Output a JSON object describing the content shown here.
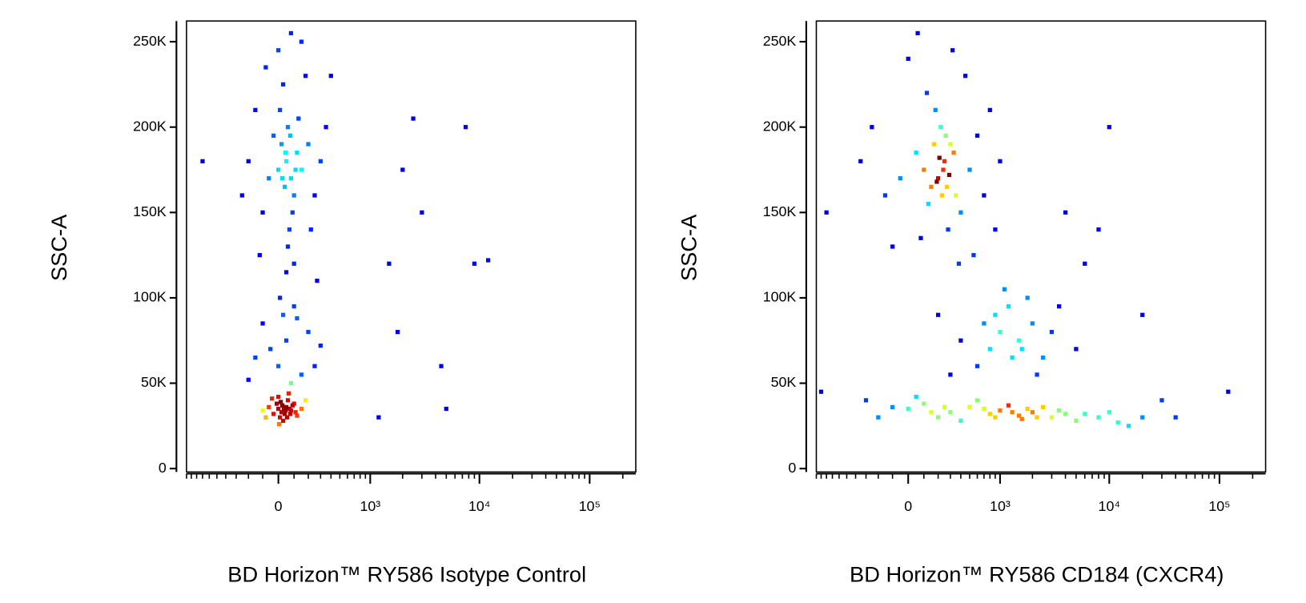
{
  "chart_data": [
    {
      "type": "scatter",
      "x_label": "BD Horizon™ RY586 Isotype Control",
      "y_label": "SSC-A",
      "xscale": "asinh",
      "colormap": "jet",
      "xlim": [
        -1000,
        262144
      ],
      "ylim": [
        -2000,
        262144
      ],
      "xticks": [
        0,
        {
          "value": 1000,
          "label": "10³"
        },
        {
          "value": 10000,
          "label": "10⁴"
        },
        {
          "value": 100000,
          "label": "10⁵"
        }
      ],
      "xminorticks": [
        -1000,
        -900,
        -800,
        -700,
        -600,
        -500,
        -400,
        -300,
        -200,
        -100,
        100,
        200,
        300,
        400,
        500,
        600,
        700,
        800,
        900,
        2000,
        3000,
        4000,
        5000,
        6000,
        7000,
        8000,
        9000,
        20000,
        30000,
        40000,
        50000,
        60000,
        70000,
        80000,
        90000,
        200000
      ],
      "yticks": [
        0,
        {
          "value": 50000,
          "label": "50K"
        },
        {
          "value": 100000,
          "label": "100K"
        },
        {
          "value": 150000,
          "label": "150K"
        },
        {
          "value": 200000,
          "label": "200K"
        },
        {
          "value": 250000,
          "label": "250K"
        }
      ],
      "x": [
        0,
        20,
        50,
        80,
        -30,
        100,
        10,
        60,
        -60,
        120,
        30,
        70,
        -10,
        40,
        90,
        -80,
        150,
        0,
        25,
        55,
        -40,
        110,
        5,
        65,
        -100,
        180,
        35,
        75,
        15,
        45,
        0,
        50,
        -100,
        150,
        100,
        -50,
        200,
        30,
        -150,
        250,
        80,
        10,
        -200,
        300,
        120,
        50,
        80,
        20,
        100,
        0,
        60,
        120,
        40,
        -30,
        150,
        90,
        10,
        70,
        130,
        -60,
        200,
        30,
        -100,
        250,
        60,
        180,
        -150,
        100,
        300,
        0,
        -200,
        350,
        50,
        150,
        -80,
        220,
        -120,
        400,
        80,
        -250,
        270,
        110,
        45,
        75,
        25,
        1500,
        2500,
        3000,
        1800,
        7500,
        9000,
        4500,
        1200,
        5000,
        12000,
        2000,
        -700
      ],
      "values": [
        35000,
        33000,
        36000,
        34000,
        32000,
        38000,
        30000,
        40000,
        36000,
        31000,
        28000,
        35000,
        38000,
        32000,
        37000,
        30000,
        35000,
        42000,
        37000,
        30000,
        41000,
        33000,
        26000,
        44000,
        34000,
        40000,
        35000,
        32000,
        39000,
        34000,
        60000,
        75000,
        85000,
        55000,
        95000,
        70000,
        80000,
        90000,
        65000,
        60000,
        50000,
        100000,
        52000,
        72000,
        88000,
        180000,
        170000,
        190000,
        160000,
        175000,
        200000,
        185000,
        165000,
        195000,
        175000,
        150000,
        210000,
        140000,
        205000,
        170000,
        190000,
        225000,
        150000,
        160000,
        130000,
        230000,
        210000,
        120000,
        180000,
        245000,
        180000,
        200000,
        115000,
        250000,
        235000,
        140000,
        125000,
        230000,
        255000,
        160000,
        110000,
        175000,
        185000,
        195000,
        170000,
        120000,
        205000,
        150000,
        80000,
        200000,
        120000,
        60000,
        30000,
        35000,
        122000,
        175000,
        180000
      ]
    },
    {
      "type": "scatter",
      "x_label": "BD Horizon™ RY586 CD184 (CXCR4)",
      "y_label": "SSC-A",
      "xscale": "asinh",
      "colormap": "jet",
      "xlim": [
        -1000,
        262144
      ],
      "ylim": [
        -2000,
        262144
      ],
      "xticks": [
        0,
        {
          "value": 1000,
          "label": "10³"
        },
        {
          "value": 10000,
          "label": "10⁴"
        },
        {
          "value": 100000,
          "label": "10⁵"
        }
      ],
      "xminorticks": [
        -1000,
        -900,
        -800,
        -700,
        -600,
        -500,
        -400,
        -300,
        -200,
        -100,
        100,
        200,
        300,
        400,
        500,
        600,
        700,
        800,
        900,
        2000,
        3000,
        4000,
        5000,
        6000,
        7000,
        8000,
        9000,
        20000,
        30000,
        40000,
        50000,
        60000,
        70000,
        80000,
        90000,
        200000
      ],
      "yticks": [
        0,
        {
          "value": 50000,
          "label": "50K"
        },
        {
          "value": 100000,
          "label": "100K"
        },
        {
          "value": 150000,
          "label": "150K"
        },
        {
          "value": 200000,
          "label": "200K"
        },
        {
          "value": 250000,
          "label": "250K"
        }
      ],
      "x": [
        0,
        100,
        300,
        500,
        800,
        1000,
        1500,
        2000,
        3000,
        200,
        -100,
        600,
        1200,
        2500,
        4000,
        5000,
        8000,
        12000,
        20000,
        50,
        400,
        700,
        1800,
        -300,
        150,
        900,
        1300,
        2200,
        3500,
        6000,
        250,
        1600,
        -200,
        10000,
        15000,
        1000,
        1500,
        2000,
        800,
        1200,
        2500,
        600,
        3000,
        1800,
        900,
        400,
        1300,
        2200,
        700,
        1600,
        5000,
        300,
        3500,
        1100,
        200,
        200,
        250,
        150,
        300,
        100,
        350,
        220,
        400,
        50,
        180,
        500,
        -50,
        280,
        120,
        600,
        -150,
        450,
        80,
        700,
        -250,
        320,
        0,
        800,
        -350,
        550,
        60,
        1000,
        -100,
        900,
        380,
        240,
        170,
        270,
        330,
        130,
        210,
        290,
        190,
        260,
        230,
        4000,
        8000,
        6000,
        10000,
        -800,
        20000,
        30000,
        120000,
        40000,
        -900
      ],
      "values": [
        35000,
        38000,
        33000,
        36000,
        32000,
        34000,
        31000,
        33000,
        30000,
        30000,
        36000,
        40000,
        37000,
        36000,
        32000,
        28000,
        30000,
        27000,
        30000,
        42000,
        28000,
        35000,
        35000,
        40000,
        33000,
        30000,
        33000,
        30000,
        34000,
        32000,
        36000,
        29000,
        30000,
        33000,
        25000,
        80000,
        75000,
        85000,
        70000,
        95000,
        65000,
        60000,
        80000,
        100000,
        90000,
        75000,
        65000,
        55000,
        85000,
        70000,
        70000,
        55000,
        95000,
        105000,
        90000,
        170000,
        180000,
        165000,
        190000,
        175000,
        160000,
        200000,
        150000,
        185000,
        210000,
        175000,
        170000,
        140000,
        220000,
        195000,
        160000,
        230000,
        135000,
        160000,
        200000,
        245000,
        240000,
        210000,
        180000,
        125000,
        255000,
        180000,
        130000,
        140000,
        120000,
        175000,
        190000,
        165000,
        185000,
        155000,
        182000,
        172000,
        168000,
        195000,
        160000,
        150000,
        140000,
        120000,
        200000,
        150000,
        90000,
        40000,
        45000,
        30000,
        45000
      ]
    }
  ]
}
